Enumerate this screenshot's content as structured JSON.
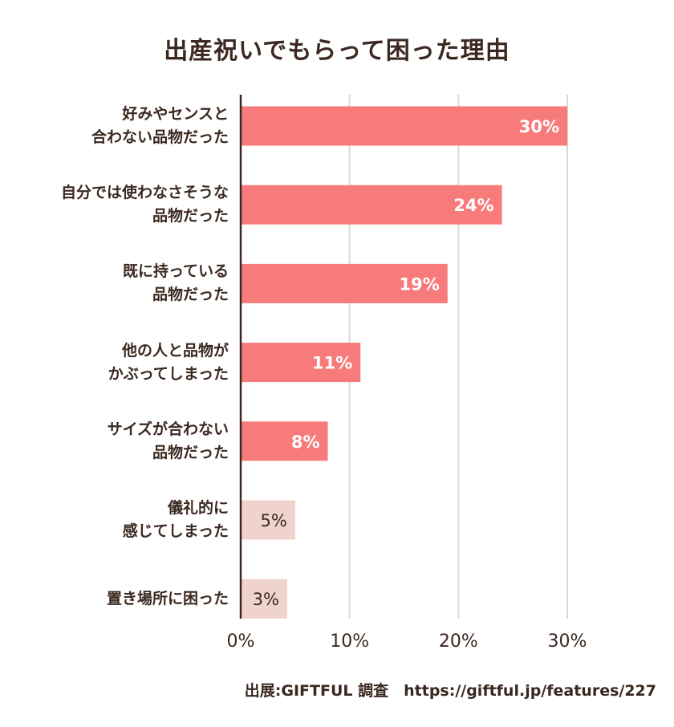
{
  "chart_data": {
    "type": "bar",
    "orientation": "horizontal",
    "title": "出産祝いでもらって困った理由",
    "categories": [
      "好みやセンスと\n合わない品物だった",
      "自分では使わなさそうな\n品物だった",
      "既に持っている\n品物だった",
      "他の人と品物が\nかぶってしまった",
      "サイズが合わない\n品物だった",
      "儀礼的に\n感じてしまった",
      "置き場所に困った"
    ],
    "values": [
      30,
      24,
      19,
      11,
      8,
      5,
      3
    ],
    "data_labels": [
      "30%",
      "24%",
      "19%",
      "11%",
      "8%",
      "5%",
      "3%"
    ],
    "xlim": [
      0,
      30
    ],
    "xticks": [
      "0%",
      "10%",
      "20%",
      "30%"
    ],
    "grid": "vertical",
    "colors": {
      "highlight": "#f77b7b",
      "muted": "#efd3cc",
      "axis": "#3b2820",
      "grid": "#d9d9d9"
    },
    "highlight_count": 5
  },
  "source": "出展:GIFTFUL 調査　https://giftful.jp/features/227"
}
